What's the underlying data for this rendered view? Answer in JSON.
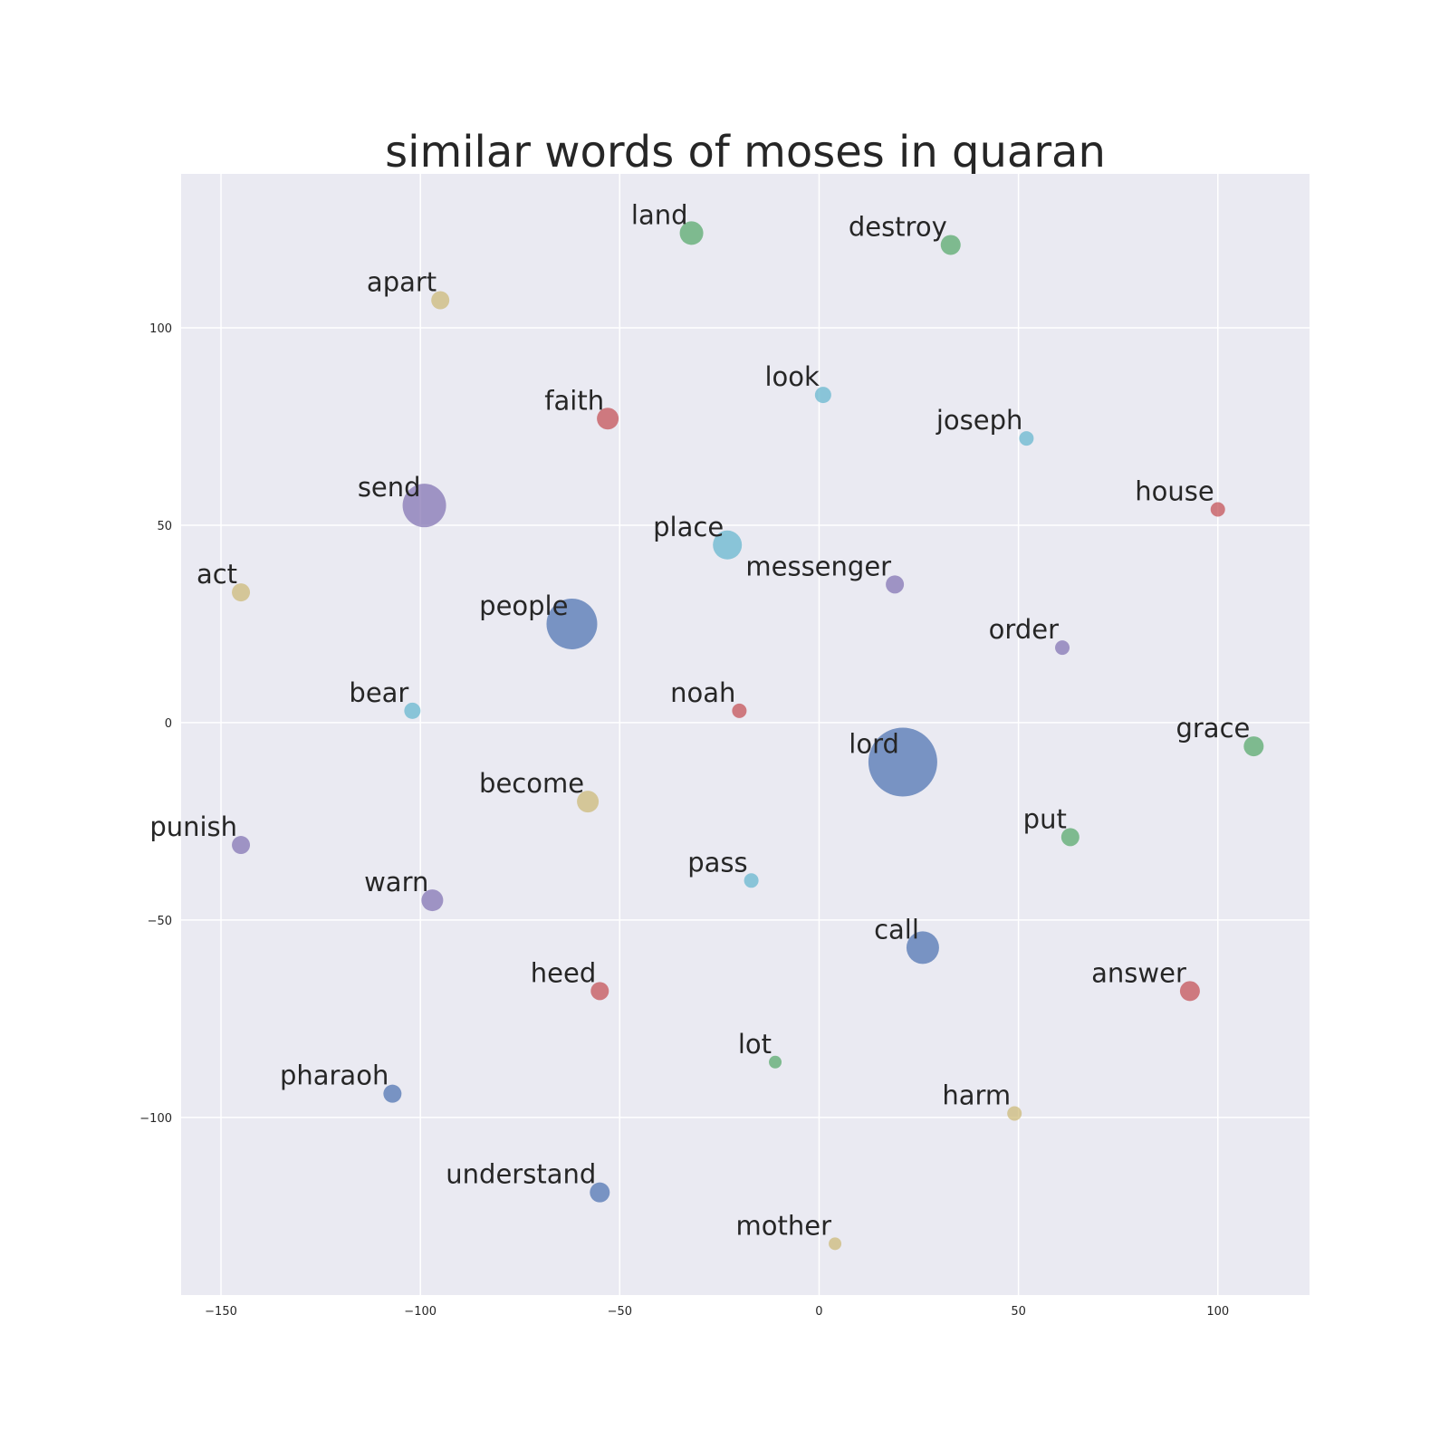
{
  "chart_data": {
    "type": "scatter",
    "title": "similar words of moses in quaran",
    "xlabel": "",
    "ylabel": "",
    "xlim": [
      -160,
      123
    ],
    "ylim": [
      -145,
      139
    ],
    "grid": true,
    "x_ticks": [
      -150,
      -100,
      -50,
      0,
      50,
      100
    ],
    "y_ticks": [
      100,
      50,
      0,
      -50,
      -100
    ],
    "x_tick_labels": [
      "−150",
      "−100",
      "−50",
      "0",
      "50",
      "100"
    ],
    "y_tick_labels": [
      "100",
      "50",
      "0",
      "−50",
      "−100"
    ],
    "colors": {
      "blue": "#4c72b0",
      "green": "#55a868",
      "red": "#c44e52",
      "purple": "#8172b2",
      "yellow": "#ccb974",
      "cyan": "#64b5cd",
      "background": "#eaeaf2",
      "grid": "#ffffff"
    },
    "points": [
      {
        "label": "land",
        "x": -32,
        "y": 124,
        "size": 13,
        "color": "green"
      },
      {
        "label": "destroy",
        "x": 33,
        "y": 121,
        "size": 11,
        "color": "green"
      },
      {
        "label": "apart",
        "x": -95,
        "y": 107,
        "size": 10,
        "color": "yellow"
      },
      {
        "label": "faith",
        "x": -53,
        "y": 77,
        "size": 12,
        "color": "red"
      },
      {
        "label": "look",
        "x": 1,
        "y": 83,
        "size": 9,
        "color": "cyan"
      },
      {
        "label": "joseph",
        "x": 52,
        "y": 72,
        "size": 8,
        "color": "cyan"
      },
      {
        "label": "send",
        "x": -99,
        "y": 55,
        "size": 24,
        "color": "purple"
      },
      {
        "label": "house",
        "x": 100,
        "y": 54,
        "size": 8,
        "color": "red"
      },
      {
        "label": "place",
        "x": -23,
        "y": 45,
        "size": 16,
        "color": "cyan"
      },
      {
        "label": "messenger",
        "x": 19,
        "y": 35,
        "size": 10,
        "color": "purple"
      },
      {
        "label": "act",
        "x": -145,
        "y": 33,
        "size": 10,
        "color": "yellow"
      },
      {
        "label": "people",
        "x": -62,
        "y": 25,
        "size": 28,
        "color": "blue"
      },
      {
        "label": "order",
        "x": 61,
        "y": 19,
        "size": 8,
        "color": "purple"
      },
      {
        "label": "bear",
        "x": -102,
        "y": 3,
        "size": 9,
        "color": "cyan"
      },
      {
        "label": "noah",
        "x": -20,
        "y": 3,
        "size": 8,
        "color": "red"
      },
      {
        "label": "grace",
        "x": 109,
        "y": -6,
        "size": 11,
        "color": "green"
      },
      {
        "label": "lord",
        "x": 21,
        "y": -10,
        "size": 38,
        "color": "blue"
      },
      {
        "label": "become",
        "x": -58,
        "y": -20,
        "size": 12,
        "color": "yellow"
      },
      {
        "label": "punish",
        "x": -145,
        "y": -31,
        "size": 10,
        "color": "purple"
      },
      {
        "label": "put",
        "x": 63,
        "y": -29,
        "size": 10,
        "color": "green"
      },
      {
        "label": "pass",
        "x": -17,
        "y": -40,
        "size": 8,
        "color": "cyan"
      },
      {
        "label": "warn",
        "x": -97,
        "y": -45,
        "size": 12,
        "color": "purple"
      },
      {
        "label": "call",
        "x": 26,
        "y": -57,
        "size": 18,
        "color": "blue"
      },
      {
        "label": "heed",
        "x": -55,
        "y": -68,
        "size": 10,
        "color": "red"
      },
      {
        "label": "answer",
        "x": 93,
        "y": -68,
        "size": 11,
        "color": "red"
      },
      {
        "label": "lot",
        "x": -11,
        "y": -86,
        "size": 7,
        "color": "green"
      },
      {
        "label": "pharaoh",
        "x": -107,
        "y": -94,
        "size": 10,
        "color": "blue"
      },
      {
        "label": "harm",
        "x": 49,
        "y": -99,
        "size": 8,
        "color": "yellow"
      },
      {
        "label": "understand",
        "x": -55,
        "y": -119,
        "size": 11,
        "color": "blue"
      },
      {
        "label": "mother",
        "x": 4,
        "y": -132,
        "size": 7,
        "color": "yellow"
      }
    ]
  }
}
